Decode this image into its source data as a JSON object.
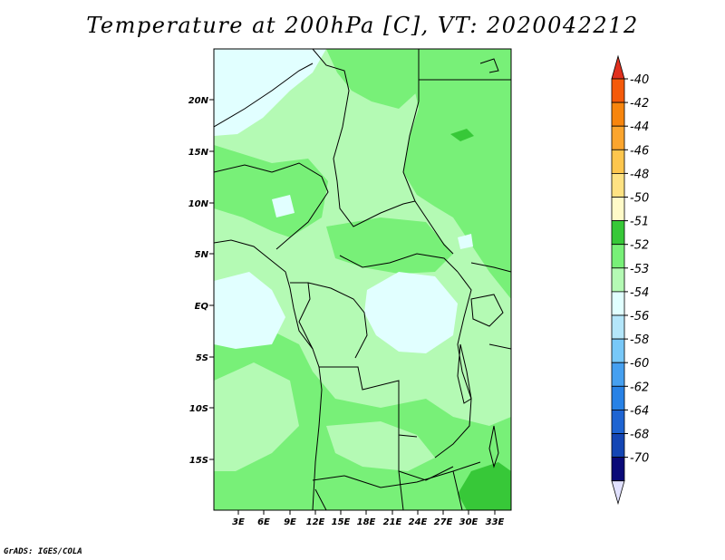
{
  "title": "Temperature at 200hPa [C], VT: 2020042212",
  "credit": "GrADS: IGES/COLA",
  "lat_labels": [
    "20N",
    "15N",
    "10N",
    "5N",
    "EQ",
    "5S",
    "10S",
    "15S"
  ],
  "lon_labels": [
    "3E",
    "6E",
    "9E",
    "12E",
    "15E",
    "18E",
    "21E",
    "24E",
    "27E",
    "30E",
    "33E"
  ],
  "colorbar": {
    "labels": [
      "-40",
      "-42",
      "-44",
      "-46",
      "-48",
      "-50",
      "-51",
      "-52",
      "-53",
      "-54",
      "-56",
      "-58",
      "-60",
      "-62",
      "-64",
      "-68",
      "-70"
    ],
    "colors": [
      "#e0301e",
      "#f45a0a",
      "#f7850e",
      "#fba52e",
      "#fdc64e",
      "#fee283",
      "#fffac8",
      "#37c838",
      "#78f078",
      "#b4fab4",
      "#e1ffff",
      "#b4e6fa",
      "#78c8f8",
      "#46a0f0",
      "#2882e6",
      "#1e64d2",
      "#1446b4",
      "#0a0a78",
      "#e1e1ff"
    ]
  }
}
